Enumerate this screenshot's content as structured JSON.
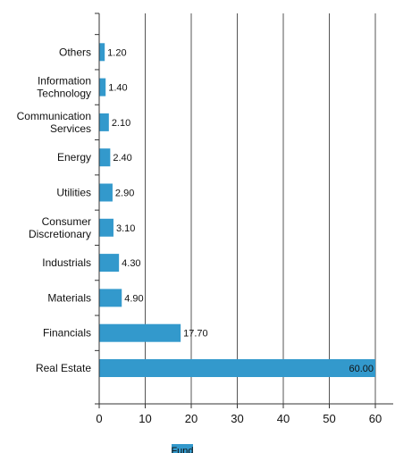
{
  "chart_data": {
    "type": "bar",
    "orientation": "horizontal",
    "categories": [
      [
        "Real Estate"
      ],
      [
        "Financials"
      ],
      [
        "Materials"
      ],
      [
        "Industrials"
      ],
      [
        "Consumer",
        "Discretionary"
      ],
      [
        "Utilities"
      ],
      [
        "Energy"
      ],
      [
        "Communication",
        "Services"
      ],
      [
        "Information",
        "Technology"
      ],
      [
        "Others"
      ]
    ],
    "series": [
      {
        "name": "Fund",
        "color": "#3399cc",
        "values": [
          60.0,
          17.7,
          4.9,
          4.3,
          3.1,
          2.9,
          2.4,
          2.1,
          1.4,
          1.2
        ],
        "value_labels": [
          "60.00",
          "17.70",
          "4.90",
          "4.30",
          "3.10",
          "2.90",
          "2.40",
          "2.10",
          "1.40",
          "1.20"
        ]
      }
    ],
    "xlim": [
      0,
      65
    ],
    "xticks": [
      0,
      10,
      20,
      30,
      40,
      50,
      60
    ],
    "xtick_labels": [
      "0",
      "10",
      "20",
      "30",
      "40",
      "50",
      "60"
    ],
    "grid": "vertical",
    "legend_position": "bottom-center",
    "title": "",
    "xlabel": "",
    "ylabel": ""
  }
}
